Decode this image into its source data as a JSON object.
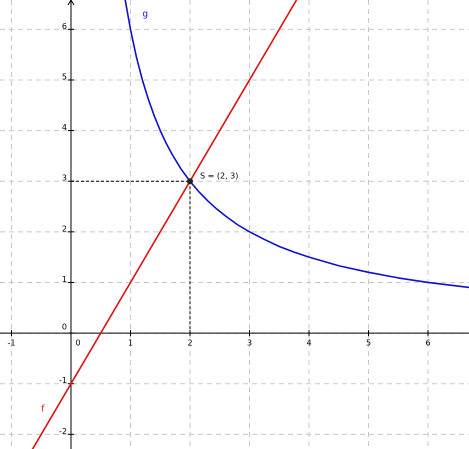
{
  "chart_data": {
    "type": "function",
    "xlim": [
      -1.193,
      6.689
    ],
    "ylim": [
      -2.29,
      6.58
    ],
    "xticks": [
      -1,
      0,
      1,
      2,
      3,
      4,
      5,
      6
    ],
    "yticks": [
      -2,
      -1,
      0,
      1,
      2,
      3,
      4,
      5,
      6
    ],
    "grid": true,
    "series": [
      {
        "name": "f",
        "color": "#e01010",
        "x": [
          -0.65,
          3.79
        ],
        "values": [
          -2.3,
          6.58
        ]
      },
      {
        "name": "g",
        "color": "#1010cc",
        "x": [
          0.91,
          1,
          1.1,
          1.2,
          1.3,
          1.4,
          1.5,
          1.6,
          1.7,
          1.85,
          2,
          2.15,
          2.3,
          2.45,
          2.6,
          2.8,
          3,
          3.25,
          3.5,
          3.75,
          4,
          4.5,
          5,
          5.5,
          6,
          6.7
        ],
        "values": [
          6.59,
          6,
          5.45,
          5,
          4.62,
          4.29,
          4,
          3.75,
          3.53,
          3.24,
          3,
          2.79,
          2.61,
          2.45,
          2.31,
          2.14,
          2,
          1.85,
          1.71,
          1.6,
          1.5,
          1.33,
          1.2,
          1.09,
          1,
          0.9
        ]
      }
    ],
    "points": [
      {
        "label": "S = (2, 3)",
        "x": 2,
        "y": 3
      }
    ]
  }
}
